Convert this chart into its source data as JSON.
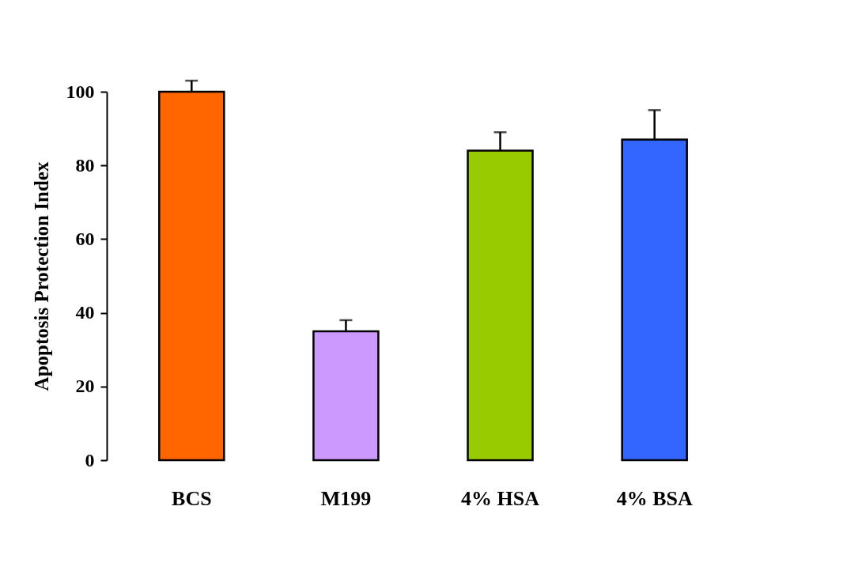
{
  "chart_data": {
    "type": "bar",
    "ylabel": "Apoptosis Protection Index",
    "categories": [
      "BCS",
      "M199",
      "4% HSA",
      "4% BSA"
    ],
    "values": [
      100,
      35,
      84,
      87
    ],
    "colors": [
      "#ff6600",
      "#cc99ff",
      "#99cc00",
      "#3366ff"
    ],
    "errors": [
      [
        100,
        103
      ],
      [
        35,
        38
      ],
      [
        84,
        89
      ],
      [
        87,
        95
      ]
    ],
    "ylim": [
      0,
      100
    ],
    "yticks": [
      0,
      20,
      40,
      60,
      80,
      100
    ],
    "grid": false
  }
}
